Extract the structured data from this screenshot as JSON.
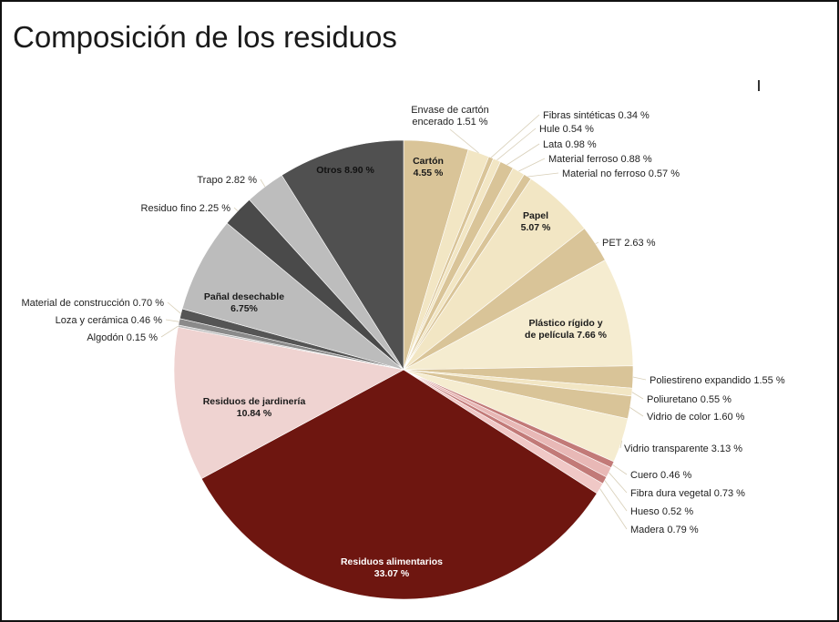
{
  "header": {
    "title": "Composición de los residuos"
  },
  "chart_data": {
    "type": "pie",
    "title": "Composición de los residuos",
    "unit": "%",
    "start_angle_deg": 0,
    "direction": "clockwise",
    "slices": [
      {
        "name": "Cartón",
        "value": 4.55,
        "display": "4.55 %",
        "color": "#d9c498",
        "label_pos": "inside"
      },
      {
        "name": "Envase de cartón encerado",
        "value": 1.51,
        "display": "1.51 %",
        "color": "#f2e6c4",
        "label_pos": "outside"
      },
      {
        "name": "Fibras sintéticas",
        "value": 0.34,
        "display": "0.34 %",
        "color": "#d9c498",
        "label_pos": "outside"
      },
      {
        "name": "Hule",
        "value": 0.54,
        "display": "0.54 %",
        "color": "#f2e6c4",
        "label_pos": "outside"
      },
      {
        "name": "Lata",
        "value": 0.98,
        "display": "0.98 %",
        "color": "#d9c498",
        "label_pos": "outside"
      },
      {
        "name": "Material ferroso",
        "value": 0.88,
        "display": "0.88 %",
        "color": "#f2e6c4",
        "label_pos": "outside"
      },
      {
        "name": "Material no ferroso",
        "value": 0.57,
        "display": "0.57 %",
        "color": "#d9c498",
        "label_pos": "outside"
      },
      {
        "name": "Papel",
        "value": 5.07,
        "display": "5.07 %",
        "color": "#f2e6c4",
        "label_pos": "inside"
      },
      {
        "name": "PET",
        "value": 2.63,
        "display": "2.63 %",
        "color": "#d9c498",
        "label_pos": "outside"
      },
      {
        "name": "Plástico rígido y de película",
        "value": 7.66,
        "display": "7.66 %",
        "color": "#f5ecd0",
        "label_pos": "inside"
      },
      {
        "name": "Poliestireno expandido",
        "value": 1.55,
        "display": "1.55 %",
        "color": "#d9c498",
        "label_pos": "outside"
      },
      {
        "name": "Poliuretano",
        "value": 0.55,
        "display": "0.55 %",
        "color": "#f2e6c4",
        "label_pos": "outside"
      },
      {
        "name": "Vidrio de color",
        "value": 1.6,
        "display": "1.60 %",
        "color": "#d9c498",
        "label_pos": "outside"
      },
      {
        "name": "Vidrio transparente",
        "value": 3.13,
        "display": "3.13 %",
        "color": "#f5ecd0",
        "label_pos": "outside"
      },
      {
        "name": "Cuero",
        "value": 0.46,
        "display": "0.46 %",
        "color": "#c27a78",
        "label_pos": "outside"
      },
      {
        "name": "Fibra dura vegetal",
        "value": 0.73,
        "display": "0.73 %",
        "color": "#e8b8b6",
        "label_pos": "outside"
      },
      {
        "name": "Hueso",
        "value": 0.52,
        "display": "0.52 %",
        "color": "#c27a78",
        "label_pos": "outside"
      },
      {
        "name": "Madera",
        "value": 0.79,
        "display": "0.79 %",
        "color": "#f0c8c6",
        "label_pos": "outside"
      },
      {
        "name": "Residuos alimentarios",
        "value": 33.07,
        "display": "33.07 %",
        "color": "#6e1610",
        "label_pos": "inside"
      },
      {
        "name": "Residuos de jardinería",
        "value": 10.84,
        "display": "10.84 %",
        "color": "#efd3d1",
        "label_pos": "inside"
      },
      {
        "name": "Algodón",
        "value": 0.15,
        "display": "0.15 %",
        "color": "#bdbdbd",
        "label_pos": "outside"
      },
      {
        "name": "Loza y cerámica",
        "value": 0.46,
        "display": "0.46 %",
        "color": "#8a8a8a",
        "label_pos": "outside"
      },
      {
        "name": "Material de construcción",
        "value": 0.7,
        "display": "0.70 %",
        "color": "#555555",
        "label_pos": "outside"
      },
      {
        "name": "Pañal desechable",
        "value": 6.75,
        "display": "6.75%",
        "color": "#bcbcbc",
        "label_pos": "inside"
      },
      {
        "name": "Residuo fino",
        "value": 2.25,
        "display": "2.25 %",
        "color": "#4a4a4a",
        "label_pos": "outside"
      },
      {
        "name": "Trapo",
        "value": 2.82,
        "display": "2.82 %",
        "color": "#bdbdbd",
        "label_pos": "outside"
      },
      {
        "name": "Otros",
        "value": 8.9,
        "display": "8.90 %",
        "color": "#505050",
        "label_pos": "inside"
      }
    ]
  }
}
